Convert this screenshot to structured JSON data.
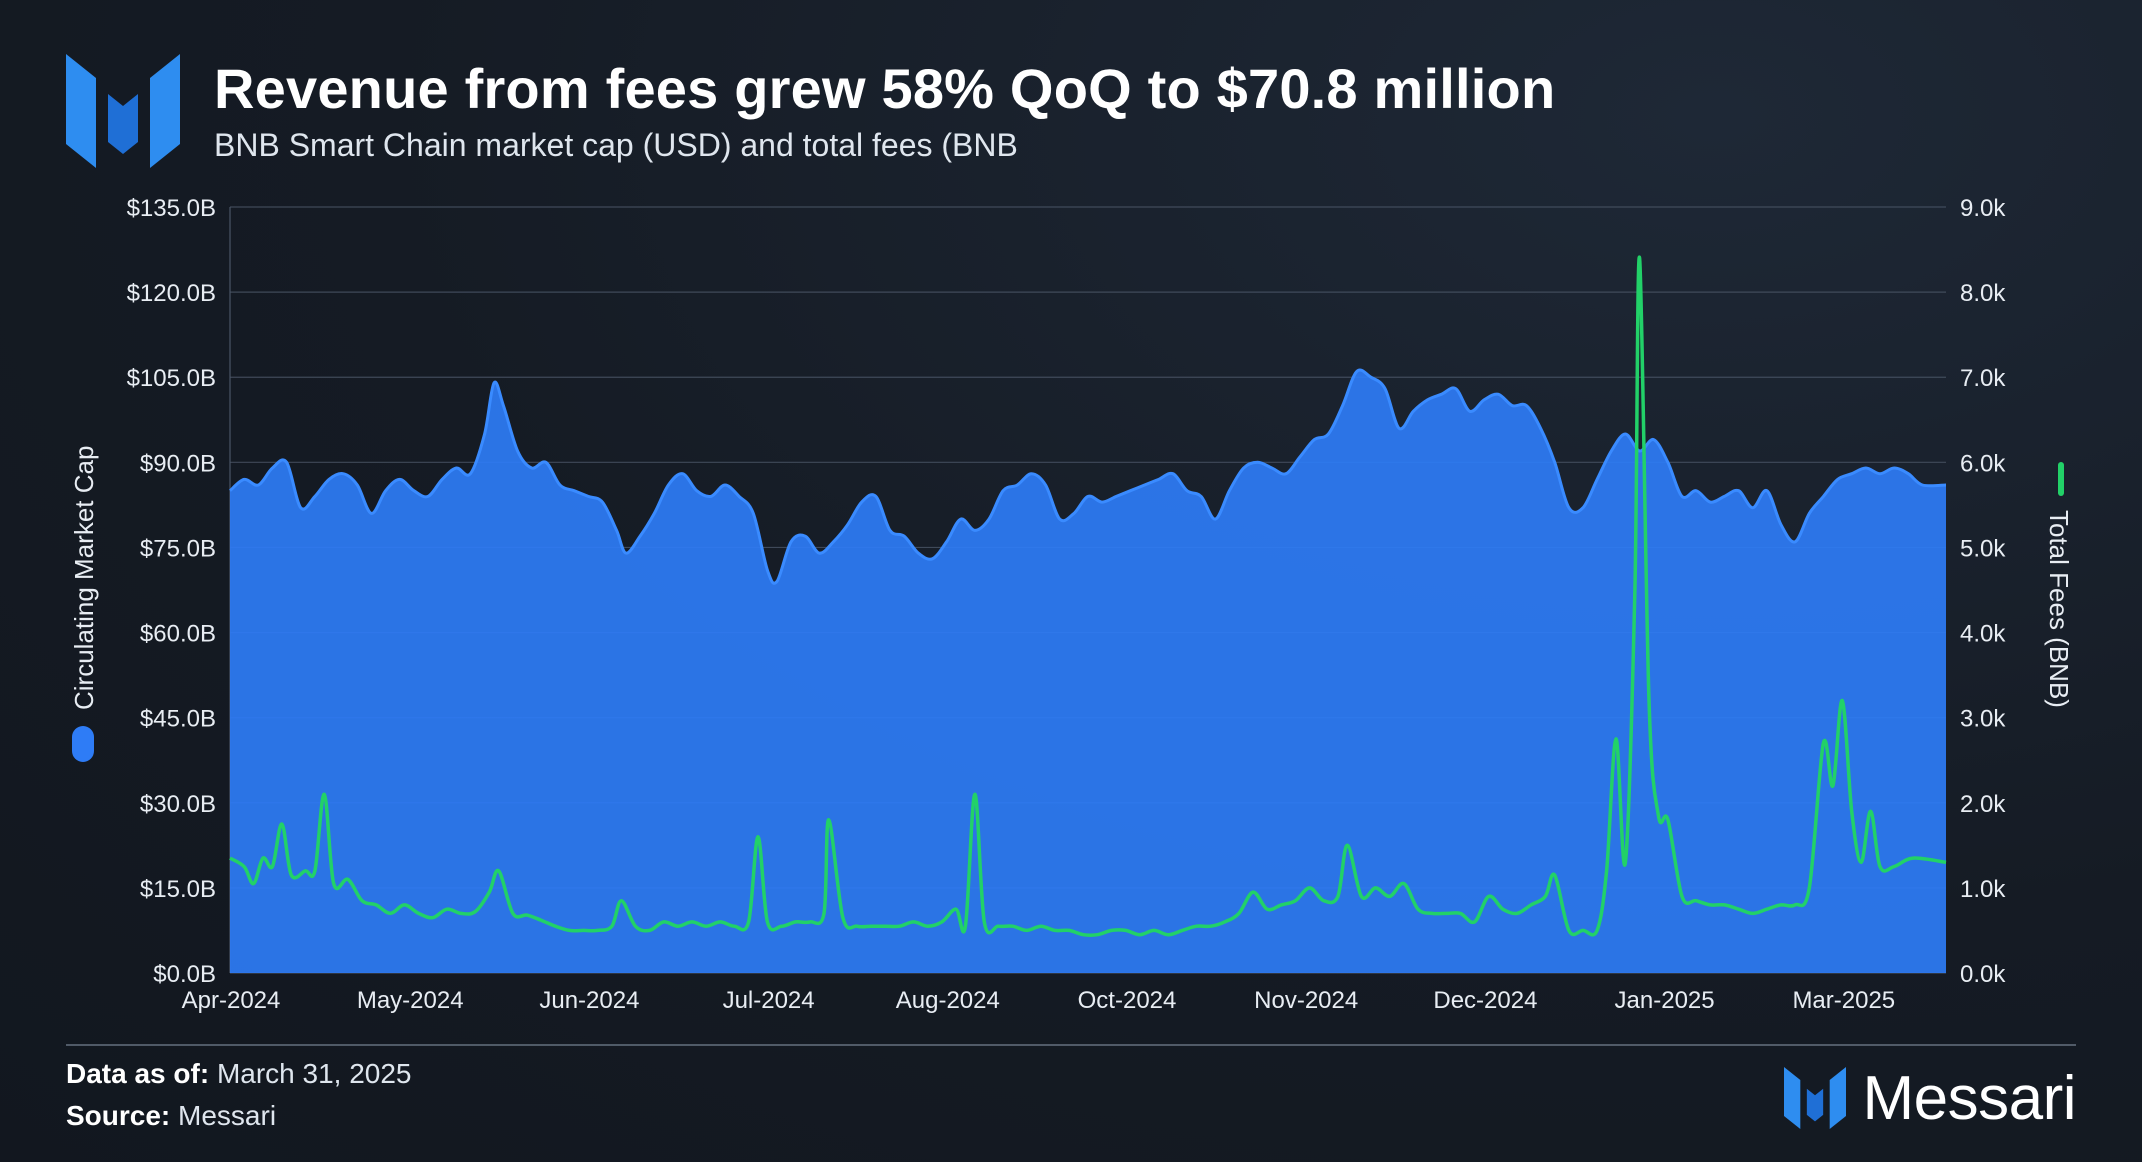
{
  "header": {
    "title": "Revenue from fees grew 58% QoQ to $70.8 million",
    "subtitle": "BNB Smart Chain market cap (USD) and total fees (BNB"
  },
  "footer": {
    "asof_label": "Data as of:",
    "asof_value": "March 31, 2025",
    "source_label": "Source:",
    "source_value": "Messari",
    "brand": "Messari"
  },
  "colors": {
    "marketcap": "#2e7cf6",
    "fees": "#22d168",
    "grid": "#4a5566",
    "text": "#e8edf3"
  },
  "chart_data": {
    "type": "area",
    "title": "Revenue from fees grew 58% QoQ to $70.8 million",
    "subtitle": "BNB Smart Chain market cap (USD) and total fees (BNB",
    "xlabel": "",
    "x_ticks": [
      "Apr-2024",
      "May-2024",
      "Jun-2024",
      "Jul-2024",
      "Aug-2024",
      "Oct-2024",
      "Nov-2024",
      "Dec-2024",
      "Jan-2025",
      "Mar-2025"
    ],
    "x_range": [
      "2024-04-01",
      "2025-03-31"
    ],
    "y_left": {
      "label": "Circulating Market Cap",
      "unit": "USD billions",
      "range": [
        0,
        135
      ],
      "ticks": [
        "$0.0B",
        "$15.0B",
        "$30.0B",
        "$45.0B",
        "$60.0B",
        "$75.0B",
        "$90.0B",
        "$105.0B",
        "$120.0B",
        "$135.0B"
      ]
    },
    "y_right": {
      "label": "Total Fees (BNB)",
      "unit": "BNB thousands",
      "range": [
        0,
        9
      ],
      "ticks": [
        "0.0k",
        "1.0k",
        "2.0k",
        "3.0k",
        "4.0k",
        "5.0k",
        "6.0k",
        "7.0k",
        "8.0k",
        "9.0k"
      ]
    },
    "grid": true,
    "series": [
      {
        "name": "Circulating Market Cap",
        "axis": "left",
        "kind": "area",
        "color": "#2e7cf6",
        "points": [
          [
            "2024-04-01",
            85
          ],
          [
            "2024-04-04",
            87
          ],
          [
            "2024-04-07",
            86
          ],
          [
            "2024-04-10",
            89
          ],
          [
            "2024-04-13",
            90
          ],
          [
            "2024-04-16",
            82
          ],
          [
            "2024-04-19",
            84
          ],
          [
            "2024-04-22",
            87
          ],
          [
            "2024-04-25",
            88
          ],
          [
            "2024-04-28",
            86
          ],
          [
            "2024-05-01",
            81
          ],
          [
            "2024-05-04",
            85
          ],
          [
            "2024-05-07",
            87
          ],
          [
            "2024-05-10",
            85
          ],
          [
            "2024-05-13",
            84
          ],
          [
            "2024-05-16",
            87
          ],
          [
            "2024-05-19",
            89
          ],
          [
            "2024-05-22",
            88
          ],
          [
            "2024-05-25",
            95
          ],
          [
            "2024-05-27",
            104
          ],
          [
            "2024-05-29",
            100
          ],
          [
            "2024-06-01",
            92
          ],
          [
            "2024-06-04",
            89
          ],
          [
            "2024-06-07",
            90
          ],
          [
            "2024-06-10",
            86
          ],
          [
            "2024-06-13",
            85
          ],
          [
            "2024-06-16",
            84
          ],
          [
            "2024-06-19",
            83
          ],
          [
            "2024-06-22",
            78
          ],
          [
            "2024-06-24",
            74
          ],
          [
            "2024-06-27",
            77
          ],
          [
            "2024-06-30",
            81
          ],
          [
            "2024-07-03",
            86
          ],
          [
            "2024-07-06",
            88
          ],
          [
            "2024-07-09",
            85
          ],
          [
            "2024-07-12",
            84
          ],
          [
            "2024-07-15",
            86
          ],
          [
            "2024-07-18",
            84
          ],
          [
            "2024-07-21",
            81
          ],
          [
            "2024-07-24",
            71
          ],
          [
            "2024-07-26",
            69
          ],
          [
            "2024-07-29",
            76
          ],
          [
            "2024-08-01",
            77
          ],
          [
            "2024-08-04",
            74
          ],
          [
            "2024-08-07",
            76
          ],
          [
            "2024-08-10",
            79
          ],
          [
            "2024-08-13",
            83
          ],
          [
            "2024-08-16",
            84
          ],
          [
            "2024-08-19",
            78
          ],
          [
            "2024-08-22",
            77
          ],
          [
            "2024-08-25",
            74
          ],
          [
            "2024-08-28",
            73
          ],
          [
            "2024-08-31",
            76
          ],
          [
            "2024-09-03",
            80
          ],
          [
            "2024-09-06",
            78
          ],
          [
            "2024-09-09",
            80
          ],
          [
            "2024-09-12",
            85
          ],
          [
            "2024-09-15",
            86
          ],
          [
            "2024-09-18",
            88
          ],
          [
            "2024-09-21",
            86
          ],
          [
            "2024-09-24",
            80
          ],
          [
            "2024-09-27",
            81
          ],
          [
            "2024-09-30",
            84
          ],
          [
            "2024-10-03",
            83
          ],
          [
            "2024-10-06",
            84
          ],
          [
            "2024-10-09",
            85
          ],
          [
            "2024-10-12",
            86
          ],
          [
            "2024-10-15",
            87
          ],
          [
            "2024-10-18",
            88
          ],
          [
            "2024-10-21",
            85
          ],
          [
            "2024-10-24",
            84
          ],
          [
            "2024-10-27",
            80
          ],
          [
            "2024-10-30",
            85
          ],
          [
            "2024-11-02",
            89
          ],
          [
            "2024-11-05",
            90
          ],
          [
            "2024-11-08",
            89
          ],
          [
            "2024-11-11",
            88
          ],
          [
            "2024-11-14",
            91
          ],
          [
            "2024-11-17",
            94
          ],
          [
            "2024-11-20",
            95
          ],
          [
            "2024-11-23",
            100
          ],
          [
            "2024-11-26",
            106
          ],
          [
            "2024-11-29",
            105
          ],
          [
            "2024-12-02",
            103
          ],
          [
            "2024-12-05",
            96
          ],
          [
            "2024-12-08",
            99
          ],
          [
            "2024-12-11",
            101
          ],
          [
            "2024-12-14",
            102
          ],
          [
            "2024-12-17",
            103
          ],
          [
            "2024-12-20",
            99
          ],
          [
            "2024-12-23",
            101
          ],
          [
            "2024-12-26",
            102
          ],
          [
            "2024-12-29",
            100
          ],
          [
            "2025-01-01",
            100
          ],
          [
            "2025-01-04",
            96
          ],
          [
            "2025-01-07",
            90
          ],
          [
            "2025-01-10",
            82
          ],
          [
            "2025-01-13",
            82
          ],
          [
            "2025-01-16",
            87
          ],
          [
            "2025-01-19",
            92
          ],
          [
            "2025-01-22",
            95
          ],
          [
            "2025-01-25",
            92
          ],
          [
            "2025-01-28",
            94
          ],
          [
            "2025-01-31",
            90
          ],
          [
            "2025-02-03",
            84
          ],
          [
            "2025-02-06",
            85
          ],
          [
            "2025-02-09",
            83
          ],
          [
            "2025-02-12",
            84
          ],
          [
            "2025-02-15",
            85
          ],
          [
            "2025-02-18",
            82
          ],
          [
            "2025-02-21",
            85
          ],
          [
            "2025-02-24",
            79
          ],
          [
            "2025-02-27",
            76
          ],
          [
            "2025-03-02",
            81
          ],
          [
            "2025-03-05",
            84
          ],
          [
            "2025-03-08",
            87
          ],
          [
            "2025-03-11",
            88
          ],
          [
            "2025-03-14",
            89
          ],
          [
            "2025-03-17",
            88
          ],
          [
            "2025-03-20",
            89
          ],
          [
            "2025-03-23",
            88
          ],
          [
            "2025-03-26",
            86
          ],
          [
            "2025-03-31",
            86
          ]
        ]
      },
      {
        "name": "Total Fees (BNB)",
        "axis": "right",
        "kind": "line",
        "color": "#22d168",
        "points": [
          [
            "2024-04-01",
            1.35
          ],
          [
            "2024-04-04",
            1.25
          ],
          [
            "2024-04-06",
            1.05
          ],
          [
            "2024-04-08",
            1.35
          ],
          [
            "2024-04-10",
            1.25
          ],
          [
            "2024-04-12",
            1.75
          ],
          [
            "2024-04-14",
            1.15
          ],
          [
            "2024-04-17",
            1.2
          ],
          [
            "2024-04-19",
            1.2
          ],
          [
            "2024-04-21",
            2.1
          ],
          [
            "2024-04-23",
            1.05
          ],
          [
            "2024-04-26",
            1.1
          ],
          [
            "2024-04-29",
            0.85
          ],
          [
            "2024-05-02",
            0.8
          ],
          [
            "2024-05-05",
            0.7
          ],
          [
            "2024-05-08",
            0.8
          ],
          [
            "2024-05-11",
            0.7
          ],
          [
            "2024-05-14",
            0.65
          ],
          [
            "2024-05-17",
            0.75
          ],
          [
            "2024-05-20",
            0.7
          ],
          [
            "2024-05-23",
            0.72
          ],
          [
            "2024-05-26",
            0.95
          ],
          [
            "2024-05-28",
            1.2
          ],
          [
            "2024-05-31",
            0.7
          ],
          [
            "2024-06-03",
            0.68
          ],
          [
            "2024-06-06",
            0.62
          ],
          [
            "2024-06-09",
            0.55
          ],
          [
            "2024-06-12",
            0.5
          ],
          [
            "2024-06-15",
            0.5
          ],
          [
            "2024-06-18",
            0.5
          ],
          [
            "2024-06-21",
            0.55
          ],
          [
            "2024-06-23",
            0.85
          ],
          [
            "2024-06-26",
            0.55
          ],
          [
            "2024-06-29",
            0.5
          ],
          [
            "2024-07-02",
            0.6
          ],
          [
            "2024-07-05",
            0.55
          ],
          [
            "2024-07-08",
            0.6
          ],
          [
            "2024-07-11",
            0.55
          ],
          [
            "2024-07-14",
            0.6
          ],
          [
            "2024-07-17",
            0.55
          ],
          [
            "2024-07-20",
            0.6
          ],
          [
            "2024-07-22",
            1.6
          ],
          [
            "2024-07-24",
            0.6
          ],
          [
            "2024-07-27",
            0.55
          ],
          [
            "2024-07-30",
            0.6
          ],
          [
            "2024-08-02",
            0.6
          ],
          [
            "2024-08-05",
            0.7
          ],
          [
            "2024-08-06",
            1.8
          ],
          [
            "2024-08-09",
            0.65
          ],
          [
            "2024-08-12",
            0.55
          ],
          [
            "2024-08-15",
            0.55
          ],
          [
            "2024-08-18",
            0.55
          ],
          [
            "2024-08-21",
            0.55
          ],
          [
            "2024-08-24",
            0.6
          ],
          [
            "2024-08-27",
            0.55
          ],
          [
            "2024-08-30",
            0.6
          ],
          [
            "2024-09-02",
            0.75
          ],
          [
            "2024-09-04",
            0.55
          ],
          [
            "2024-09-06",
            2.1
          ],
          [
            "2024-09-08",
            0.6
          ],
          [
            "2024-09-11",
            0.55
          ],
          [
            "2024-09-14",
            0.55
          ],
          [
            "2024-09-17",
            0.5
          ],
          [
            "2024-09-20",
            0.55
          ],
          [
            "2024-09-23",
            0.5
          ],
          [
            "2024-09-26",
            0.5
          ],
          [
            "2024-09-29",
            0.45
          ],
          [
            "2024-10-02",
            0.45
          ],
          [
            "2024-10-05",
            0.5
          ],
          [
            "2024-10-08",
            0.5
          ],
          [
            "2024-10-11",
            0.45
          ],
          [
            "2024-10-14",
            0.5
          ],
          [
            "2024-10-17",
            0.45
          ],
          [
            "2024-10-20",
            0.5
          ],
          [
            "2024-10-23",
            0.55
          ],
          [
            "2024-10-26",
            0.55
          ],
          [
            "2024-10-29",
            0.6
          ],
          [
            "2024-11-01",
            0.7
          ],
          [
            "2024-11-04",
            0.95
          ],
          [
            "2024-11-07",
            0.75
          ],
          [
            "2024-11-10",
            0.8
          ],
          [
            "2024-11-13",
            0.85
          ],
          [
            "2024-11-16",
            1.0
          ],
          [
            "2024-11-19",
            0.85
          ],
          [
            "2024-11-22",
            0.9
          ],
          [
            "2024-11-24",
            1.5
          ],
          [
            "2024-11-27",
            0.9
          ],
          [
            "2024-11-30",
            1.0
          ],
          [
            "2024-12-03",
            0.9
          ],
          [
            "2024-12-06",
            1.05
          ],
          [
            "2024-12-09",
            0.75
          ],
          [
            "2024-12-12",
            0.7
          ],
          [
            "2024-12-15",
            0.7
          ],
          [
            "2024-12-18",
            0.7
          ],
          [
            "2024-12-21",
            0.6
          ],
          [
            "2024-12-24",
            0.9
          ],
          [
            "2024-12-27",
            0.75
          ],
          [
            "2024-12-30",
            0.7
          ],
          [
            "2025-01-02",
            0.8
          ],
          [
            "2025-01-05",
            0.9
          ],
          [
            "2025-01-07",
            1.15
          ],
          [
            "2025-01-10",
            0.5
          ],
          [
            "2025-01-13",
            0.5
          ],
          [
            "2025-01-16",
            0.5
          ],
          [
            "2025-01-18",
            1.2
          ],
          [
            "2025-01-20",
            2.75
          ],
          [
            "2025-01-22",
            1.3
          ],
          [
            "2025-01-24",
            4.5
          ],
          [
            "2025-01-25",
            8.4
          ],
          [
            "2025-01-27",
            3.2
          ],
          [
            "2025-01-29",
            1.85
          ],
          [
            "2025-01-31",
            1.8
          ],
          [
            "2025-02-03",
            0.9
          ],
          [
            "2025-02-06",
            0.85
          ],
          [
            "2025-02-09",
            0.8
          ],
          [
            "2025-02-12",
            0.8
          ],
          [
            "2025-02-15",
            0.75
          ],
          [
            "2025-02-18",
            0.7
          ],
          [
            "2025-02-21",
            0.75
          ],
          [
            "2025-02-24",
            0.8
          ],
          [
            "2025-02-27",
            0.8
          ],
          [
            "2025-03-02",
            1.0
          ],
          [
            "2025-03-05",
            2.7
          ],
          [
            "2025-03-07",
            2.2
          ],
          [
            "2025-03-09",
            3.2
          ],
          [
            "2025-03-11",
            1.9
          ],
          [
            "2025-03-13",
            1.3
          ],
          [
            "2025-03-15",
            1.9
          ],
          [
            "2025-03-17",
            1.25
          ],
          [
            "2025-03-20",
            1.25
          ],
          [
            "2025-03-24",
            1.35
          ],
          [
            "2025-03-31",
            1.3
          ]
        ]
      }
    ]
  }
}
